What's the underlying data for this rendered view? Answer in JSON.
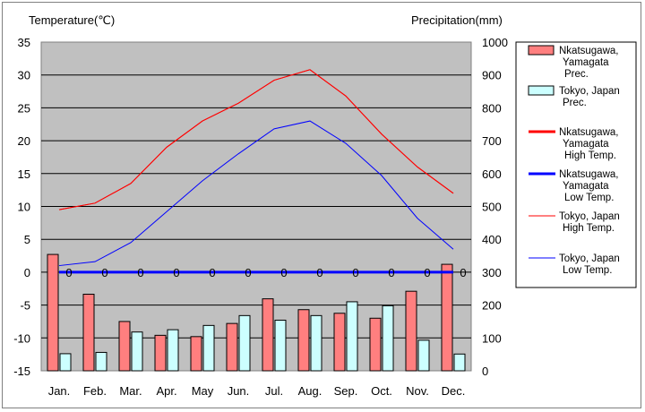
{
  "chart_data": {
    "type": "bar+line",
    "left_axis_title": "Temperature(℃)",
    "right_axis_title": "Precipitation(mm)",
    "categories": [
      "Jan.",
      "Feb.",
      "Mar.",
      "Apr.",
      "May",
      "Jun.",
      "Jul.",
      "Aug.",
      "Sep.",
      "Oct.",
      "Nov.",
      "Dec."
    ],
    "left_axis": {
      "min": -15,
      "max": 35,
      "ticks": [
        "35",
        "30",
        "25",
        "20",
        "15",
        "10",
        "5",
        "0",
        "-5",
        "-10",
        "-15"
      ]
    },
    "right_axis": {
      "min": 0,
      "max": 1000,
      "ticks": [
        "1000",
        "900",
        "800",
        "700",
        "600",
        "500",
        "400",
        "300",
        "200",
        "100",
        "0"
      ]
    },
    "grid": "horizontal",
    "legend_position": "right",
    "plot_background": "#C0C0C0",
    "bar_series": [
      {
        "name": "Nkatsugawa, Yamagata Prec.",
        "legend_lines": [
          "Nkatsugawa,",
          "Yamagata",
          "Prec."
        ],
        "color": "#FF7F7F",
        "values": [
          354,
          233,
          150,
          108,
          104,
          144,
          219,
          186,
          175,
          160,
          242,
          324
        ]
      },
      {
        "name": "Tokyo, Japan Prec.",
        "legend_lines": [
          "Tokyo, Japan",
          "Prec."
        ],
        "color": "#CCFFFF",
        "values": [
          52,
          56,
          118,
          125,
          138,
          168,
          154,
          168,
          210,
          198,
          93,
          51
        ]
      }
    ],
    "line_series": [
      {
        "name": "Nkatsugawa, Yamagata High Temp.",
        "legend_lines": [
          "Nkatsugawa,",
          "Yamagata",
          "High Temp."
        ],
        "color": "#FF0000",
        "width": 1,
        "legend_width": 3,
        "values": [
          9.5,
          10.5,
          13.5,
          19.0,
          23.0,
          25.7,
          29.2,
          30.8,
          26.8,
          21.0,
          16.0,
          12.0
        ]
      },
      {
        "name": "Nkatsugawa, Yamagata Low Temp.",
        "legend_lines": [
          "Nkatsugawa,",
          "Yamagata",
          "Low Temp."
        ],
        "color": "#0000FF",
        "width": 3,
        "legend_width": 3,
        "values": [
          0,
          0,
          0,
          0,
          0,
          0,
          0,
          0,
          0,
          0,
          0,
          0
        ],
        "point_labels": [
          "0",
          "0",
          "0",
          "0",
          "0",
          "0",
          "0",
          "0",
          "0",
          "0",
          "0",
          "0"
        ]
      },
      {
        "name": "Tokyo, Japan High Temp.",
        "legend_lines": [
          "Tokyo, Japan",
          "High Temp."
        ],
        "color": "#FF0000",
        "width": 1,
        "legend_width": 1,
        "values": [
          9.5,
          10.5,
          13.5,
          19.0,
          23.0,
          25.7,
          29.2,
          30.8,
          26.8,
          21.0,
          16.0,
          12.0
        ]
      },
      {
        "name": "Tokyo, Japan Low Temp.",
        "legend_lines": [
          "Tokyo, Japan",
          "Low Temp."
        ],
        "color": "#0000FF",
        "width": 1,
        "legend_width": 1,
        "values": [
          1.0,
          1.6,
          4.5,
          9.2,
          13.9,
          18.0,
          21.8,
          23.0,
          19.6,
          14.7,
          8.2,
          3.5
        ]
      }
    ]
  }
}
